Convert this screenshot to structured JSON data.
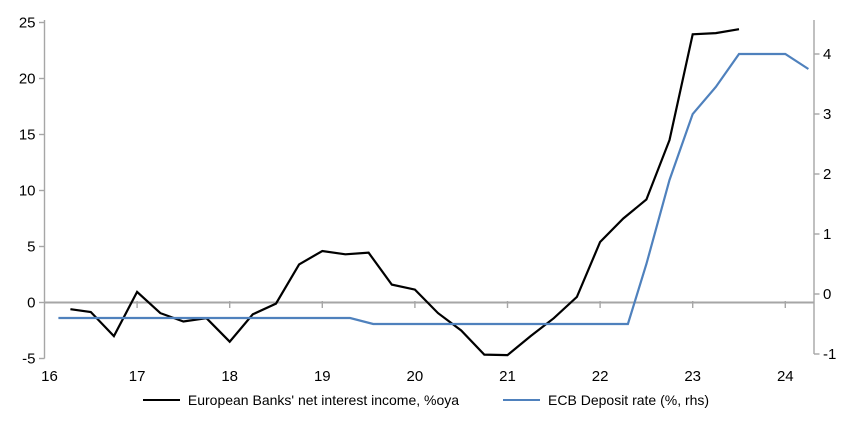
{
  "chart_data": {
    "type": "line",
    "title": "",
    "xlabel": "",
    "ylabel_left": "",
    "ylabel_right": "",
    "legend_position": "bottom",
    "grid": "zero-line-only",
    "legend": [
      {
        "label": "European Banks' net interest income, %oya",
        "color": "#000000"
      },
      {
        "label": "ECB Deposit rate (%, rhs)",
        "color": "#4f81bd"
      }
    ],
    "x_axis": {
      "ticks": [
        16,
        17,
        18,
        19,
        20,
        21,
        22,
        23,
        24
      ],
      "range": [
        16,
        24.35
      ]
    },
    "y_left": {
      "ticks": [
        -5,
        0,
        5,
        10,
        15,
        20,
        25
      ],
      "range": [
        -5,
        25
      ]
    },
    "y_right": {
      "ticks": [
        -1,
        0,
        1,
        2,
        3,
        4
      ],
      "range": [
        -1,
        4.5
      ]
    },
    "axis_color": "#a6a6a6",
    "series": [
      {
        "name": "European Banks' net interest income, %oya",
        "axis": "left",
        "color": "#000000",
        "points": [
          [
            16.28,
            -0.6
          ],
          [
            16.5,
            -0.85
          ],
          [
            16.75,
            -3.0
          ],
          [
            17.0,
            0.95
          ],
          [
            17.25,
            -0.95
          ],
          [
            17.5,
            -1.7
          ],
          [
            17.75,
            -1.4
          ],
          [
            18.0,
            -3.5
          ],
          [
            18.25,
            -1.05
          ],
          [
            18.5,
            -0.1
          ],
          [
            18.75,
            3.4
          ],
          [
            19.0,
            4.6
          ],
          [
            19.25,
            4.3
          ],
          [
            19.5,
            4.45
          ],
          [
            19.75,
            1.6
          ],
          [
            20.0,
            1.15
          ],
          [
            20.25,
            -0.95
          ],
          [
            20.5,
            -2.5
          ],
          [
            20.75,
            -4.65
          ],
          [
            21.0,
            -4.7
          ],
          [
            21.25,
            -3.0
          ],
          [
            21.5,
            -1.4
          ],
          [
            21.75,
            0.5
          ],
          [
            22.0,
            5.4
          ],
          [
            22.25,
            7.5
          ],
          [
            22.5,
            9.2
          ],
          [
            22.75,
            14.5
          ],
          [
            23.0,
            23.95
          ],
          [
            23.25,
            24.05
          ],
          [
            23.5,
            24.4
          ]
        ]
      },
      {
        "name": "ECB Deposit rate (%, rhs)",
        "axis": "right",
        "color": "#4f81bd",
        "points": [
          [
            16.15,
            -0.4
          ],
          [
            19.3,
            -0.4
          ],
          [
            19.55,
            -0.5
          ],
          [
            22.3,
            -0.5
          ],
          [
            22.5,
            0.5
          ],
          [
            22.75,
            1.9
          ],
          [
            23.0,
            3.0
          ],
          [
            23.25,
            3.45
          ],
          [
            23.5,
            4.0
          ],
          [
            24.0,
            4.0
          ],
          [
            24.25,
            3.75
          ]
        ]
      }
    ]
  }
}
